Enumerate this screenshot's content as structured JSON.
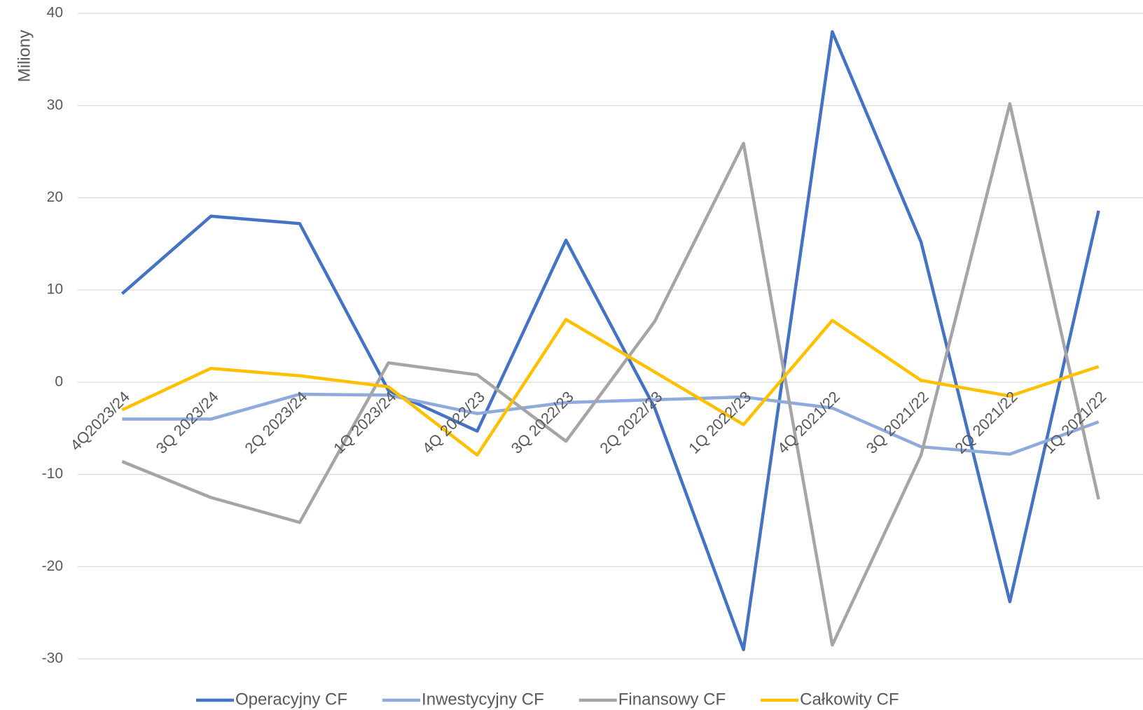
{
  "chart_data": {
    "type": "line",
    "ylabel": "Miliony",
    "categories": [
      "4Q2023/24",
      "3Q 2023/24",
      "2Q 2023/24",
      "1Q 2023/24",
      "4Q 2022/23",
      "3Q 2022/23",
      "2Q 2022/23",
      "1Q 2022/23",
      "4Q 2021/22",
      "3Q 2021/22",
      "2Q 2021/22",
      "1Q 2021/22"
    ],
    "series": [
      {
        "name": "Operacyjny CF",
        "color": "#4472c4",
        "values": [
          9.6,
          18.0,
          17.2,
          -0.9,
          -5.3,
          15.4,
          -2.8,
          -29.0,
          38.0,
          15.2,
          -23.8,
          18.6
        ]
      },
      {
        "name": "Inwestycyjny CF",
        "color": "#8faadc",
        "values": [
          -4.0,
          -4.0,
          -1.3,
          -1.4,
          -3.4,
          -2.2,
          -1.9,
          -1.6,
          -2.8,
          -7.0,
          -7.8,
          -4.3
        ]
      },
      {
        "name": "Finansowy CF",
        "color": "#a5a5a5",
        "values": [
          -8.6,
          -12.5,
          -15.2,
          2.1,
          0.8,
          -6.4,
          6.6,
          25.9,
          -28.5,
          -7.9,
          30.2,
          -12.7
        ]
      },
      {
        "name": "Całkowity CF",
        "color": "#ffc000",
        "values": [
          -3.0,
          1.5,
          0.7,
          -0.5,
          -7.9,
          6.8,
          1.1,
          -4.6,
          6.7,
          0.2,
          -1.5,
          1.7
        ]
      }
    ],
    "ylim": [
      -30,
      40
    ],
    "yticks": [
      -30,
      -20,
      -10,
      0,
      10,
      20,
      30,
      40
    ],
    "grid": true,
    "legend": "bottom"
  }
}
